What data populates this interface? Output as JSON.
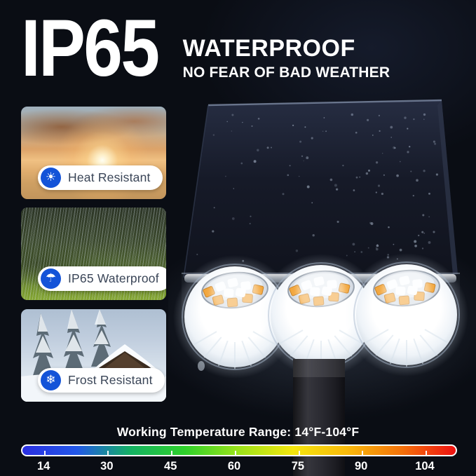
{
  "header": {
    "rating_badge": "IP65",
    "title": "WATERPROOF",
    "subtitle": "NO FEAR OF BAD WEATHER"
  },
  "features": [
    {
      "label": "Heat Resistant",
      "icon": "sun-icon",
      "glyph": "☀"
    },
    {
      "label": "IP65 Waterproof",
      "icon": "umbrella-icon",
      "glyph": "☂"
    },
    {
      "label": "Frost Resistant",
      "icon": "snowflake-icon",
      "glyph": "❄"
    }
  ],
  "temperature_scale": {
    "title": "Working Temperature Range: 14°F-104°F",
    "unit": "°F",
    "min": 14,
    "max": 104,
    "tick_labels": [
      "14",
      "30",
      "45",
      "60",
      "75",
      "90",
      "104"
    ],
    "gradient_colors": [
      "#2b2fe2",
      "#2257e8",
      "#14b163",
      "#2fd12b",
      "#9ce21a",
      "#f5e60e",
      "#f8b90b",
      "#f4720a",
      "#ee1111"
    ]
  },
  "colors": {
    "background": "#0a0d14",
    "badge_circle_blue": "#1353d8",
    "badge_text": "#3a4557",
    "headline_text": "#ffffff"
  }
}
